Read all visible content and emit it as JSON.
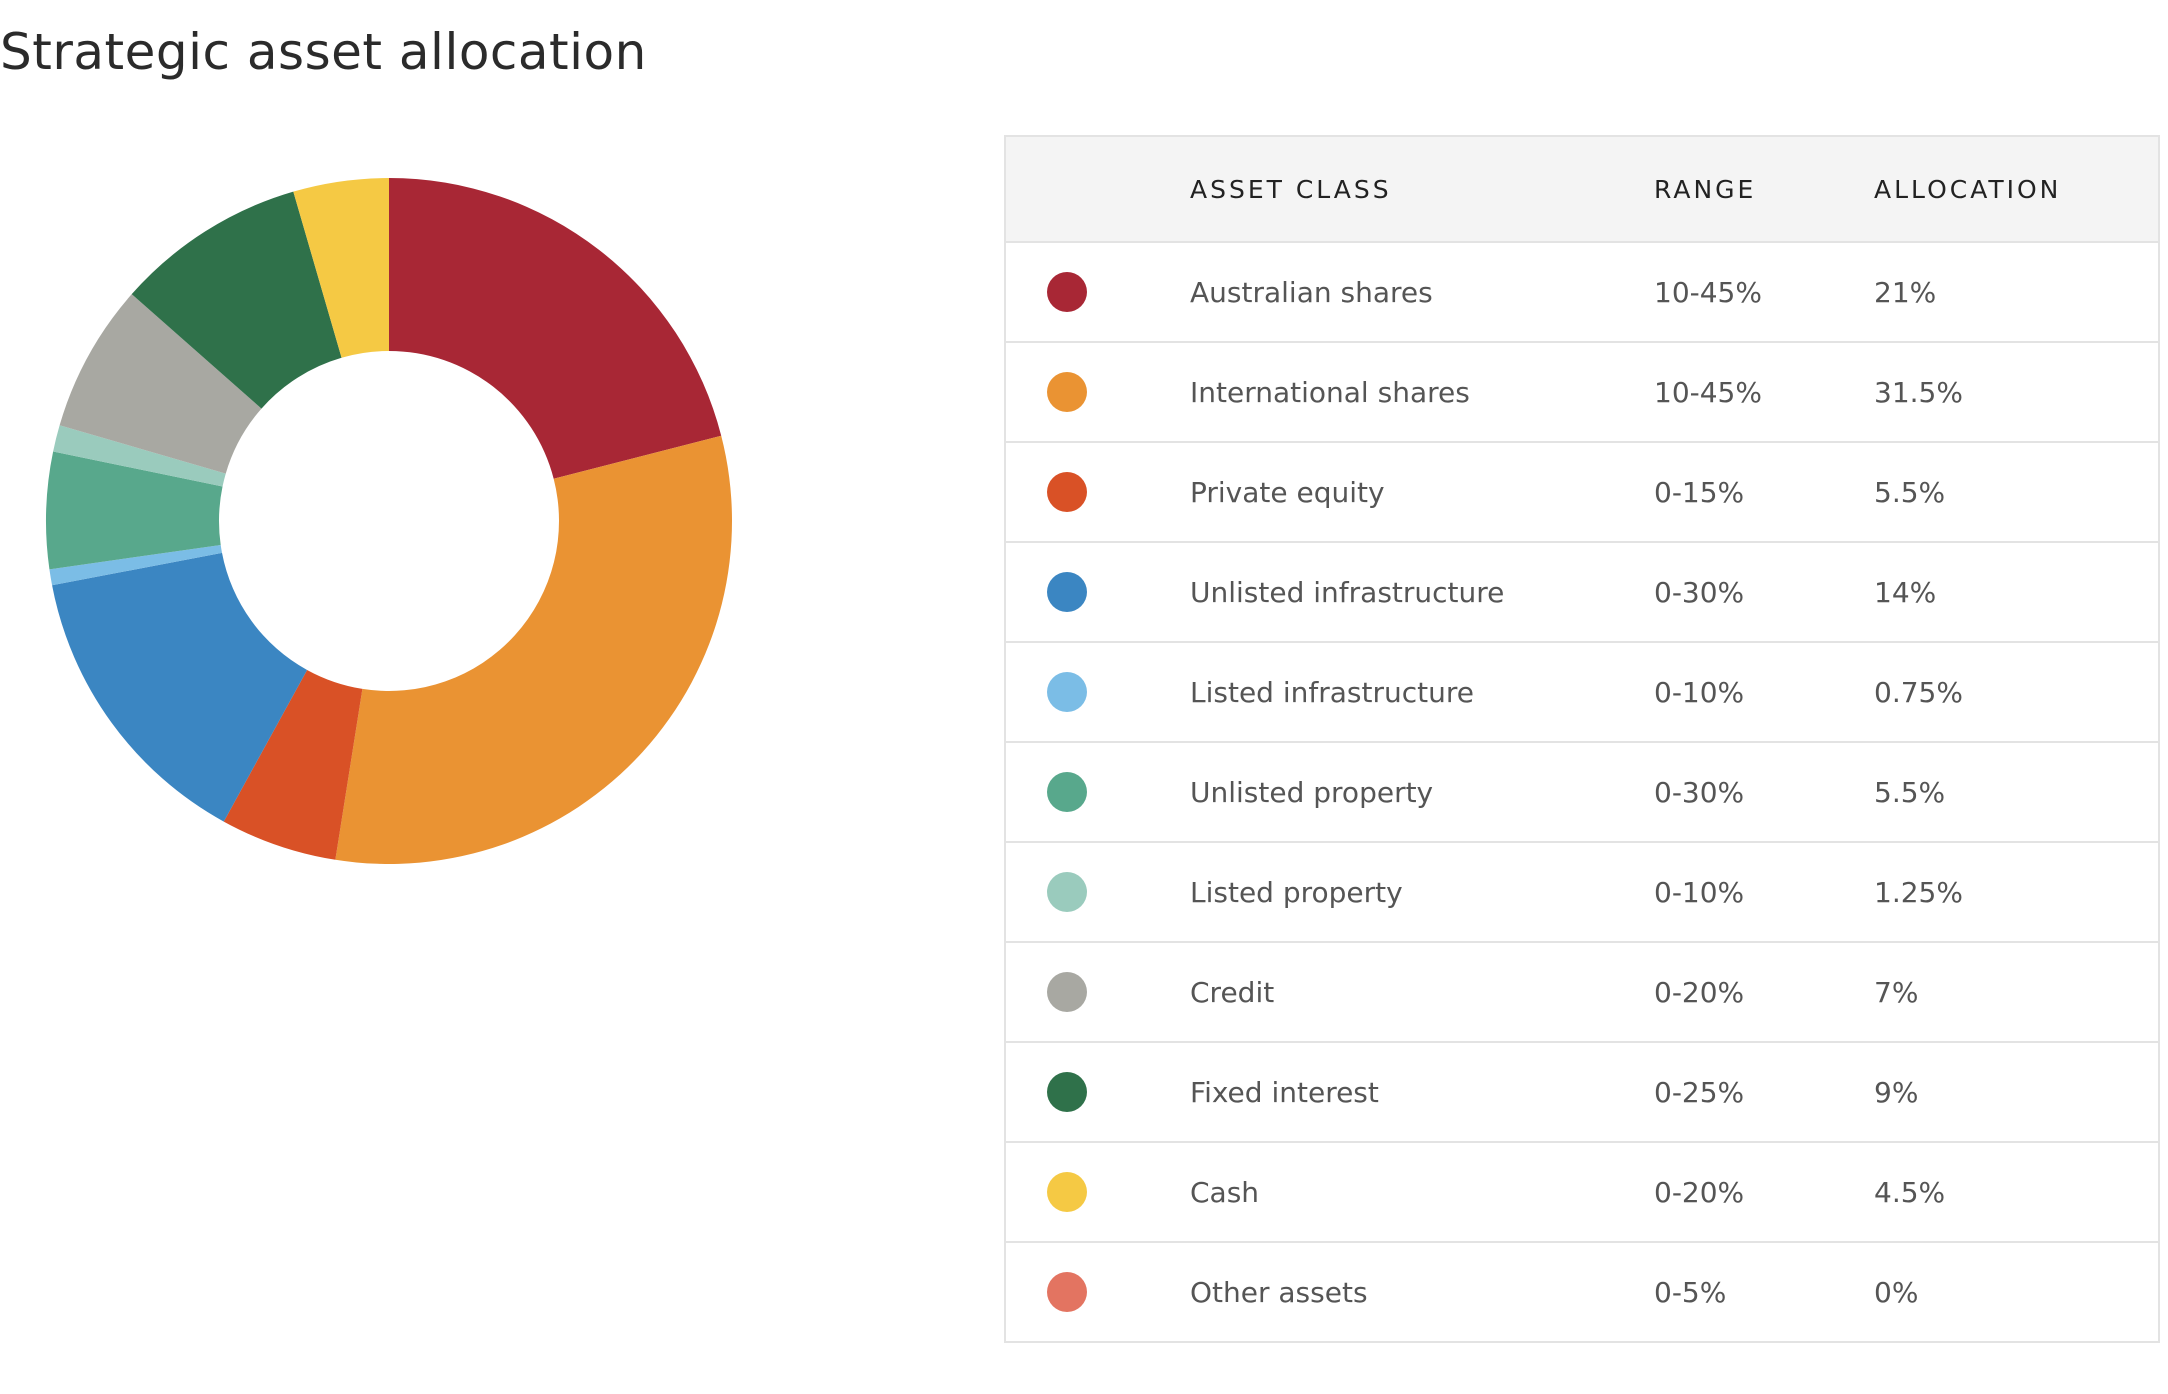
{
  "page": {
    "title": "Strategic asset allocation"
  },
  "table": {
    "headers": {
      "swatch": "",
      "asset_class": "ASSET CLASS",
      "range": "RANGE",
      "allocation": "ALLOCATION"
    },
    "rows": [
      {
        "asset_class": "Australian shares",
        "range": "10-45%",
        "allocation": "21%",
        "color": "#a82735"
      },
      {
        "asset_class": "International shares",
        "range": "10-45%",
        "allocation": "31.5%",
        "color": "#ea9333"
      },
      {
        "asset_class": "Private equity",
        "range": "0-15%",
        "allocation": "5.5%",
        "color": "#d95126"
      },
      {
        "asset_class": "Unlisted infrastructure",
        "range": "0-30%",
        "allocation": "14%",
        "color": "#3b86c2"
      },
      {
        "asset_class": "Listed infrastructure",
        "range": "0-10%",
        "allocation": "0.75%",
        "color": "#7bbde6"
      },
      {
        "asset_class": "Unlisted property",
        "range": "0-30%",
        "allocation": "5.5%",
        "color": "#58a88c"
      },
      {
        "asset_class": "Listed property",
        "range": "0-10%",
        "allocation": "1.25%",
        "color": "#9acbbd"
      },
      {
        "asset_class": "Credit",
        "range": "0-20%",
        "allocation": "7%",
        "color": "#a8a8a2"
      },
      {
        "asset_class": "Fixed interest",
        "range": "0-25%",
        "allocation": "9%",
        "color": "#2f714a"
      },
      {
        "asset_class": "Cash",
        "range": "0-20%",
        "allocation": "4.5%",
        "color": "#f5c944"
      },
      {
        "asset_class": "Other assets",
        "range": "0-5%",
        "allocation": "0%",
        "color": "#e37461"
      }
    ]
  },
  "chart_data": {
    "type": "pie",
    "variant": "donut",
    "categories": [
      "Australian shares",
      "International shares",
      "Private equity",
      "Unlisted infrastructure",
      "Listed infrastructure",
      "Unlisted property",
      "Listed property",
      "Credit",
      "Fixed interest",
      "Cash",
      "Other assets"
    ],
    "values": [
      21,
      31.5,
      5.5,
      14,
      0.75,
      5.5,
      1.25,
      7,
      9,
      4.5,
      0
    ],
    "unit": "%",
    "colors": [
      "#a82735",
      "#ea9333",
      "#d95126",
      "#3b86c2",
      "#7bbde6",
      "#58a88c",
      "#9acbbd",
      "#a8a8a2",
      "#2f714a",
      "#f5c944",
      "#e37461"
    ],
    "start": "12 o'clock",
    "direction": "clockwise",
    "legend": "table at right"
  }
}
